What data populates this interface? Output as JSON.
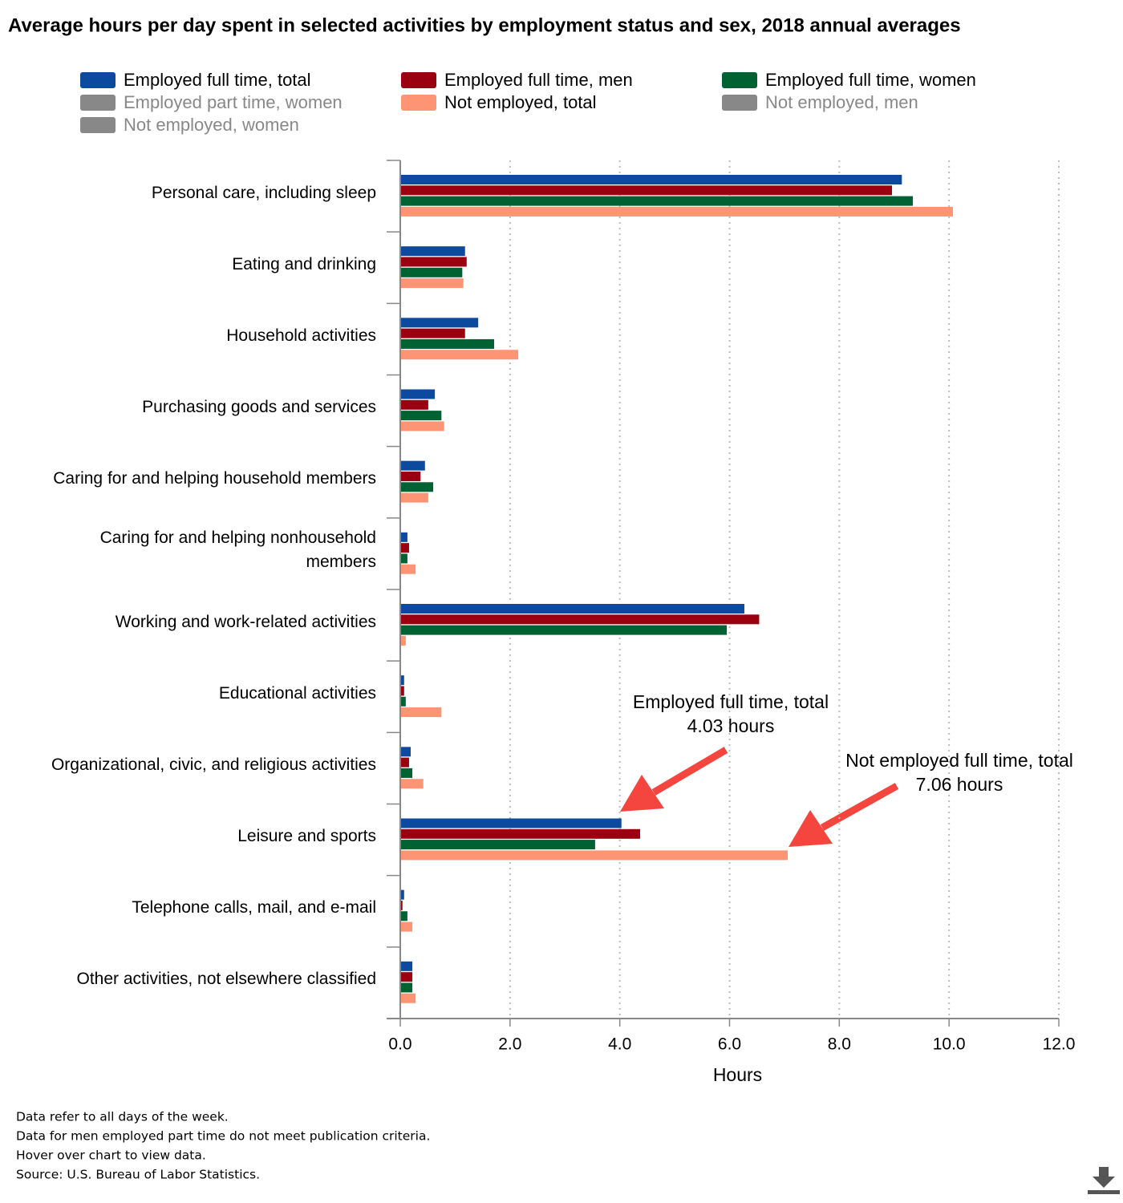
{
  "chart_data": {
    "type": "barh",
    "title": "Average hours per day spent in selected activities by employment status and sex, 2018 annual averages",
    "categories": [
      "Personal care, including sleep",
      "Eating and drinking",
      "Household activities",
      "Purchasing goods and services",
      "Caring for and helping household members",
      "Caring for and helping nonhousehold members",
      "Working and work-related activities",
      "Educational activities",
      "Organizational, civic, and religious activities",
      "Leisure and sports",
      "Telephone calls, mail, and e-mail",
      "Other activities, not elsewhere classified"
    ],
    "series": [
      {
        "name": "Employed full time, total",
        "color": "#0b4a9e",
        "visible": true,
        "values": [
          9.14,
          1.18,
          1.42,
          0.63,
          0.45,
          0.13,
          6.27,
          0.07,
          0.19,
          4.03,
          0.07,
          0.22
        ]
      },
      {
        "name": "Employed full time, men",
        "color": "#9b0010",
        "visible": true,
        "values": [
          8.96,
          1.21,
          1.18,
          0.51,
          0.37,
          0.16,
          6.54,
          0.07,
          0.16,
          4.37,
          0.04,
          0.22
        ]
      },
      {
        "name": "Employed full time, women",
        "color": "#006133",
        "visible": true,
        "values": [
          9.34,
          1.13,
          1.71,
          0.75,
          0.6,
          0.13,
          5.95,
          0.1,
          0.22,
          3.55,
          0.13,
          0.22
        ]
      },
      {
        "name": "Employed part time, women",
        "color": "#888888",
        "visible": false,
        "values": [
          null,
          null,
          null,
          null,
          null,
          null,
          null,
          null,
          null,
          null,
          null,
          null
        ]
      },
      {
        "name": "Not employed, total",
        "color": "#fd9473",
        "visible": true,
        "values": [
          10.07,
          1.15,
          2.15,
          0.8,
          0.51,
          0.28,
          0.1,
          0.75,
          0.42,
          7.06,
          0.22,
          0.28
        ]
      },
      {
        "name": "Not employed, men",
        "color": "#888888",
        "visible": false,
        "values": [
          null,
          null,
          null,
          null,
          null,
          null,
          null,
          null,
          null,
          null,
          null,
          null
        ]
      },
      {
        "name": "Not employed, women",
        "color": "#888888",
        "visible": false,
        "values": [
          null,
          null,
          null,
          null,
          null,
          null,
          null,
          null,
          null,
          null,
          null,
          null
        ]
      }
    ],
    "xlabel": "Hours",
    "xlim": [
      0,
      12
    ],
    "xticks": [
      {
        "value": 0,
        "label": "0.0"
      },
      {
        "value": 2,
        "label": "2.0"
      },
      {
        "value": 4,
        "label": "4.0"
      },
      {
        "value": 6,
        "label": "6.0"
      },
      {
        "value": 8,
        "label": "8.0"
      },
      {
        "value": 10,
        "label": "10.0"
      },
      {
        "value": 12,
        "label": "12.0"
      }
    ],
    "grid": true,
    "annotations": [
      [
        "Employed full time, total",
        "4.03 hours"
      ],
      [
        "Not employed full time, total",
        "7.06 hours"
      ]
    ],
    "notes": [
      "Data refer to all days of the week.",
      "Data for men employed part time do not meet publication criteria.",
      "Hover over chart to view data.",
      "Source: U.S. Bureau of Labor Statistics."
    ]
  }
}
